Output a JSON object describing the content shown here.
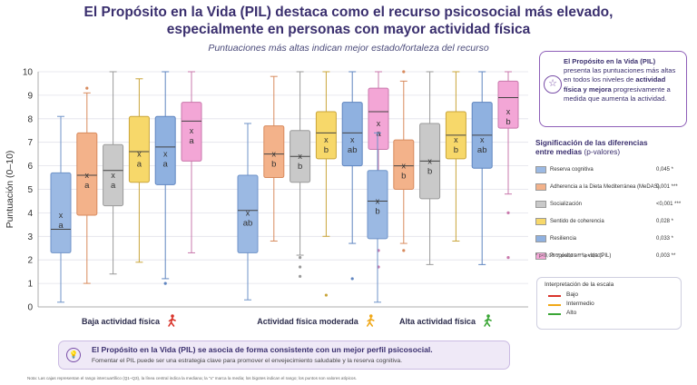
{
  "title_line1": "El Propósito en la Vida (PIL) destaca como el recurso psicosocial más elevado,",
  "title_line2": "especialmente en personas con mayor actividad física",
  "subtitle": "Puntuaciones más altas indican mejor estado/fortaleza del recurso",
  "callout": {
    "pre": "El Propósito en la Vida (PIL)",
    "mid1": " presenta las puntuaciones más altas en todos los niveles de ",
    "bold": "actividad física y mejora",
    "mid2": " progresivamente a medida que aumenta la actividad.",
    "icon": "star-icon"
  },
  "significance": {
    "title": "Significación de las diferencias",
    "title2": "entre medias",
    "title2_rest": " (p-valores)",
    "rows": [
      {
        "name": "Reserva cognitiva",
        "p": "0,045 *",
        "color": "#9bb9e3"
      },
      {
        "name": "Adherencia a la Dieta Mediterránea (MeDAS)",
        "p": "0,001 ***",
        "color": "#f3b28a"
      },
      {
        "name": "Socialización",
        "p": "<0,001 ***",
        "color": "#c9c9c9"
      },
      {
        "name": "Sentido de coherencia",
        "p": "0,028 *",
        "color": "#f7d86a"
      },
      {
        "name": "Resiliencia",
        "p": "0,033 *",
        "color": "#8fb1e0"
      },
      {
        "name": "Propósito en la vida (PIL)",
        "p": "0,003 **",
        "color": "#f3a6d6"
      }
    ],
    "note": "* p<0,05    ** p<0,01    *** p<0,001"
  },
  "scale": {
    "title": "Interpretación de la escala",
    "items": [
      {
        "label": "Bajo",
        "color": "#d9342b"
      },
      {
        "label": "Intermedio",
        "color": "#f0a818"
      },
      {
        "label": "Alto",
        "color": "#3aa635"
      }
    ]
  },
  "banner": {
    "line1": "El Propósito en la Vida (PIL) se asocia de forma consistente con un mejor perfil psicosocial.",
    "line2": "Fomentar el PIL puede ser una estrategia clave para promover el envejecimiento saludable y la reserva cognitiva.",
    "icon": "lightbulb-icon"
  },
  "footnote": "Nota: Las cajas representan el rango intercuartílico (Q1–Q3), la línea central indica la mediana; la \"x\" marca la media; los bigotes indican el rango; los puntos son valores atípicos.",
  "chart_data": {
    "type": "boxplot",
    "ylabel": "Puntuación (0–10)",
    "ylim": [
      0,
      10
    ],
    "yticks": [
      0,
      1,
      2,
      3,
      4,
      5,
      6,
      7,
      8,
      9,
      10
    ],
    "grid": true,
    "groups": [
      {
        "label": "Baja actividad física",
        "icon_color": "#d9342b",
        "icon": "person-walking-icon"
      },
      {
        "label": "Actividad física moderada",
        "icon_color": "#f0a818",
        "icon": "person-walking-icon"
      },
      {
        "label": "Alta actividad física",
        "icon_color": "#3aa635",
        "icon": "person-running-icon"
      }
    ],
    "series": [
      {
        "name": "Reserva cognitiva",
        "color": "#9bb9e3",
        "stroke": "#6f93c8",
        "boxes": [
          {
            "min": 0.2,
            "q1": 2.3,
            "median": 3.3,
            "q3": 5.7,
            "max": 8.1,
            "mean": 3.9,
            "letter": "a",
            "outliers": []
          },
          {
            "min": 0.3,
            "q1": 2.3,
            "median": 4.1,
            "q3": 5.6,
            "max": 7.8,
            "mean": 4.0,
            "letter": "ab",
            "outliers": []
          },
          {
            "min": 0.2,
            "q1": 2.9,
            "median": 4.5,
            "q3": 5.8,
            "max": 7.4,
            "mean": 4.5,
            "letter": "b",
            "outliers": []
          }
        ]
      },
      {
        "name": "Adherencia a la Dieta Mediterránea (MeDAS)",
        "color": "#f3b28a",
        "stroke": "#d88b5e",
        "boxes": [
          {
            "min": 1.0,
            "q1": 3.9,
            "median": 5.6,
            "q3": 7.4,
            "max": 9.1,
            "mean": 5.6,
            "letter": "a",
            "outliers": [
              9.3
            ]
          },
          {
            "min": 2.8,
            "q1": 5.5,
            "median": 6.5,
            "q3": 7.7,
            "max": 9.8,
            "mean": 6.5,
            "letter": "b",
            "outliers": []
          },
          {
            "min": 2.7,
            "q1": 5.0,
            "median": 6.0,
            "q3": 7.1,
            "max": 9.6,
            "mean": 6.0,
            "letter": "b",
            "outliers": [
              2.4,
              10.0
            ]
          }
        ]
      },
      {
        "name": "Socialización",
        "color": "#c9c9c9",
        "stroke": "#9a9a9a",
        "boxes": [
          {
            "min": 1.4,
            "q1": 4.3,
            "median": 5.8,
            "q3": 6.9,
            "max": 10.0,
            "mean": 5.6,
            "letter": "a",
            "outliers": []
          },
          {
            "min": 2.2,
            "q1": 5.3,
            "median": 6.4,
            "q3": 7.5,
            "max": 10.0,
            "mean": 6.4,
            "letter": "b",
            "outliers": [
              2.1,
              1.7,
              1.3
            ]
          },
          {
            "min": 1.8,
            "q1": 4.6,
            "median": 6.2,
            "q3": 7.8,
            "max": 10.0,
            "mean": 6.2,
            "letter": "b",
            "outliers": []
          }
        ]
      },
      {
        "name": "Sentido de coherencia",
        "color": "#f7d86a",
        "stroke": "#c9a53a",
        "boxes": [
          {
            "min": 1.9,
            "q1": 5.3,
            "median": 6.6,
            "q3": 8.1,
            "max": 9.7,
            "mean": 6.5,
            "letter": "a",
            "outliers": []
          },
          {
            "min": 3.0,
            "q1": 6.3,
            "median": 7.4,
            "q3": 8.3,
            "max": 10.0,
            "mean": 7.1,
            "letter": "b",
            "outliers": [
              0.5
            ]
          },
          {
            "min": 2.8,
            "q1": 6.3,
            "median": 7.3,
            "q3": 8.3,
            "max": 10.0,
            "mean": 7.1,
            "letter": "b",
            "outliers": []
          }
        ]
      },
      {
        "name": "Resiliencia",
        "color": "#8fb1e0",
        "stroke": "#5f85c0",
        "boxes": [
          {
            "min": 1.2,
            "q1": 5.2,
            "median": 6.8,
            "q3": 8.1,
            "max": 10.0,
            "mean": 6.5,
            "letter": "a",
            "outliers": [
              1.0
            ]
          },
          {
            "min": 2.7,
            "q1": 6.0,
            "median": 7.4,
            "q3": 8.7,
            "max": 10.0,
            "mean": 7.1,
            "letter": "ab",
            "outliers": [
              1.2
            ]
          },
          {
            "min": 1.8,
            "q1": 5.9,
            "median": 7.3,
            "q3": 8.7,
            "max": 10.0,
            "mean": 7.1,
            "letter": "ab",
            "outliers": []
          }
        ]
      },
      {
        "name": "Propósito en la vida (PIL)",
        "color": "#f3a6d6",
        "stroke": "#c978ac",
        "boxes": [
          {
            "min": 2.3,
            "q1": 6.2,
            "median": 7.9,
            "q3": 8.7,
            "max": 10.0,
            "mean": 7.5,
            "letter": "a",
            "outliers": []
          },
          {
            "min": 3.3,
            "q1": 6.7,
            "median": 8.3,
            "q3": 9.3,
            "max": 10.0,
            "mean": 7.8,
            "letter": "a",
            "outliers": [
              2.4,
              1.7
            ]
          },
          {
            "min": 4.8,
            "q1": 7.6,
            "median": 8.9,
            "q3": 9.6,
            "max": 10.0,
            "mean": 8.3,
            "letter": "b",
            "outliers": [
              4.0,
              2.1
            ]
          }
        ]
      }
    ]
  }
}
